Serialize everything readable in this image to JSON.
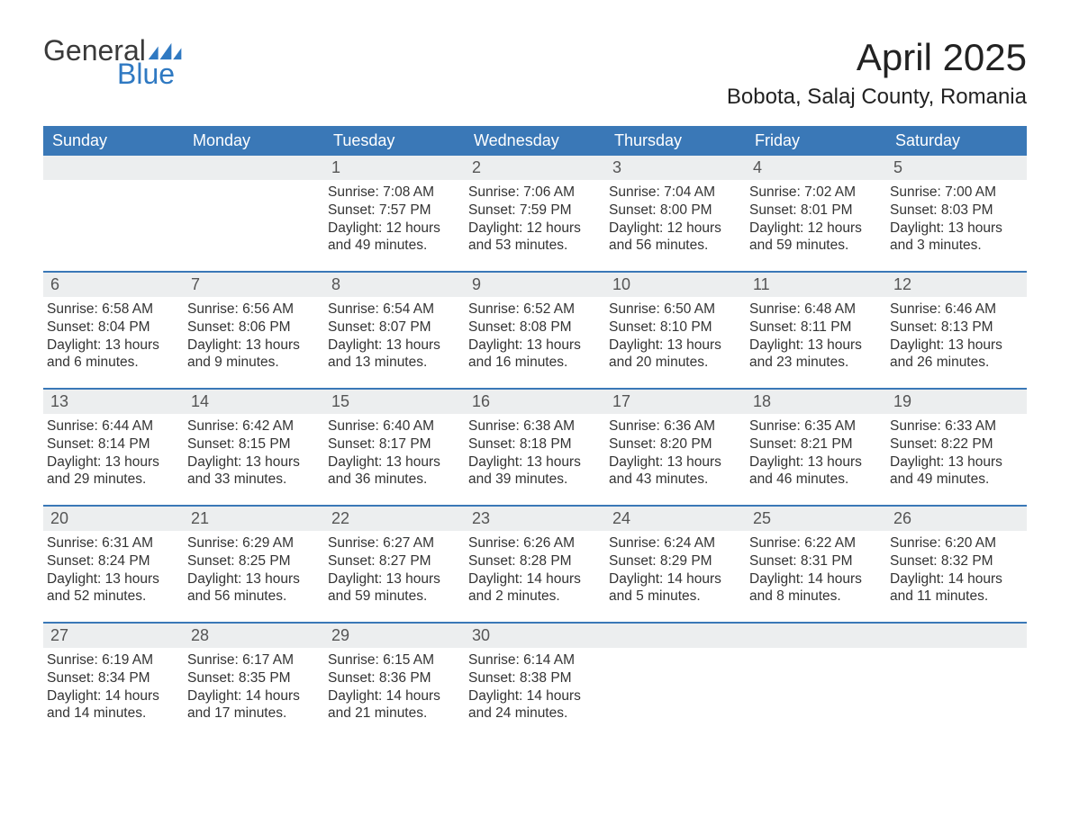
{
  "logo": {
    "general": "General",
    "blue": "Blue",
    "flag_color": "#2f79c2"
  },
  "title": "April 2025",
  "location": "Bobota, Salaj County, Romania",
  "colors": {
    "header_bg": "#3a78b7",
    "header_text": "#ffffff",
    "daynum_bg": "#eceeef",
    "daynum_text": "#555555",
    "body_text": "#333333",
    "week_border": "#3a78b7",
    "page_bg": "#ffffff"
  },
  "fonts": {
    "title_size_pt": 32,
    "location_size_pt": 18,
    "weekday_size_pt": 14,
    "daynum_size_pt": 14,
    "body_size_pt": 12
  },
  "weekdays": [
    "Sunday",
    "Monday",
    "Tuesday",
    "Wednesday",
    "Thursday",
    "Friday",
    "Saturday"
  ],
  "weeks": [
    [
      null,
      null,
      {
        "n": "1",
        "sunrise": "7:08 AM",
        "sunset": "7:57 PM",
        "daylight": "12 hours and 49 minutes."
      },
      {
        "n": "2",
        "sunrise": "7:06 AM",
        "sunset": "7:59 PM",
        "daylight": "12 hours and 53 minutes."
      },
      {
        "n": "3",
        "sunrise": "7:04 AM",
        "sunset": "8:00 PM",
        "daylight": "12 hours and 56 minutes."
      },
      {
        "n": "4",
        "sunrise": "7:02 AM",
        "sunset": "8:01 PM",
        "daylight": "12 hours and 59 minutes."
      },
      {
        "n": "5",
        "sunrise": "7:00 AM",
        "sunset": "8:03 PM",
        "daylight": "13 hours and 3 minutes."
      }
    ],
    [
      {
        "n": "6",
        "sunrise": "6:58 AM",
        "sunset": "8:04 PM",
        "daylight": "13 hours and 6 minutes."
      },
      {
        "n": "7",
        "sunrise": "6:56 AM",
        "sunset": "8:06 PM",
        "daylight": "13 hours and 9 minutes."
      },
      {
        "n": "8",
        "sunrise": "6:54 AM",
        "sunset": "8:07 PM",
        "daylight": "13 hours and 13 minutes."
      },
      {
        "n": "9",
        "sunrise": "6:52 AM",
        "sunset": "8:08 PM",
        "daylight": "13 hours and 16 minutes."
      },
      {
        "n": "10",
        "sunrise": "6:50 AM",
        "sunset": "8:10 PM",
        "daylight": "13 hours and 20 minutes."
      },
      {
        "n": "11",
        "sunrise": "6:48 AM",
        "sunset": "8:11 PM",
        "daylight": "13 hours and 23 minutes."
      },
      {
        "n": "12",
        "sunrise": "6:46 AM",
        "sunset": "8:13 PM",
        "daylight": "13 hours and 26 minutes."
      }
    ],
    [
      {
        "n": "13",
        "sunrise": "6:44 AM",
        "sunset": "8:14 PM",
        "daylight": "13 hours and 29 minutes."
      },
      {
        "n": "14",
        "sunrise": "6:42 AM",
        "sunset": "8:15 PM",
        "daylight": "13 hours and 33 minutes."
      },
      {
        "n": "15",
        "sunrise": "6:40 AM",
        "sunset": "8:17 PM",
        "daylight": "13 hours and 36 minutes."
      },
      {
        "n": "16",
        "sunrise": "6:38 AM",
        "sunset": "8:18 PM",
        "daylight": "13 hours and 39 minutes."
      },
      {
        "n": "17",
        "sunrise": "6:36 AM",
        "sunset": "8:20 PM",
        "daylight": "13 hours and 43 minutes."
      },
      {
        "n": "18",
        "sunrise": "6:35 AM",
        "sunset": "8:21 PM",
        "daylight": "13 hours and 46 minutes."
      },
      {
        "n": "19",
        "sunrise": "6:33 AM",
        "sunset": "8:22 PM",
        "daylight": "13 hours and 49 minutes."
      }
    ],
    [
      {
        "n": "20",
        "sunrise": "6:31 AM",
        "sunset": "8:24 PM",
        "daylight": "13 hours and 52 minutes."
      },
      {
        "n": "21",
        "sunrise": "6:29 AM",
        "sunset": "8:25 PM",
        "daylight": "13 hours and 56 minutes."
      },
      {
        "n": "22",
        "sunrise": "6:27 AM",
        "sunset": "8:27 PM",
        "daylight": "13 hours and 59 minutes."
      },
      {
        "n": "23",
        "sunrise": "6:26 AM",
        "sunset": "8:28 PM",
        "daylight": "14 hours and 2 minutes."
      },
      {
        "n": "24",
        "sunrise": "6:24 AM",
        "sunset": "8:29 PM",
        "daylight": "14 hours and 5 minutes."
      },
      {
        "n": "25",
        "sunrise": "6:22 AM",
        "sunset": "8:31 PM",
        "daylight": "14 hours and 8 minutes."
      },
      {
        "n": "26",
        "sunrise": "6:20 AM",
        "sunset": "8:32 PM",
        "daylight": "14 hours and 11 minutes."
      }
    ],
    [
      {
        "n": "27",
        "sunrise": "6:19 AM",
        "sunset": "8:34 PM",
        "daylight": "14 hours and 14 minutes."
      },
      {
        "n": "28",
        "sunrise": "6:17 AM",
        "sunset": "8:35 PM",
        "daylight": "14 hours and 17 minutes."
      },
      {
        "n": "29",
        "sunrise": "6:15 AM",
        "sunset": "8:36 PM",
        "daylight": "14 hours and 21 minutes."
      },
      {
        "n": "30",
        "sunrise": "6:14 AM",
        "sunset": "8:38 PM",
        "daylight": "14 hours and 24 minutes."
      },
      null,
      null,
      null
    ]
  ],
  "labels": {
    "sunrise": "Sunrise: ",
    "sunset": "Sunset: ",
    "daylight": "Daylight: "
  }
}
